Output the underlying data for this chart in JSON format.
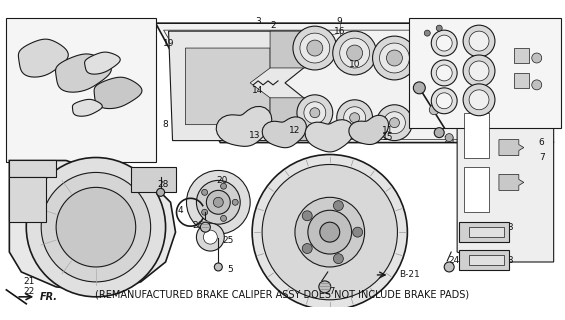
{
  "footnote": "(REMANUFACTURED BRAKE CALIPER ASSY DOES NOT INCLUDE BRAKE PADS)",
  "background_color": "#ffffff",
  "footnote_fontsize": 7.0,
  "footnote_color": "#111111",
  "fig_width": 5.65,
  "fig_height": 3.2,
  "dpi": 100,
  "line_color": "#1a1a1a",
  "gray_fill": "#d4d4d4",
  "light_fill": "#eeeeee",
  "white_fill": "#ffffff"
}
